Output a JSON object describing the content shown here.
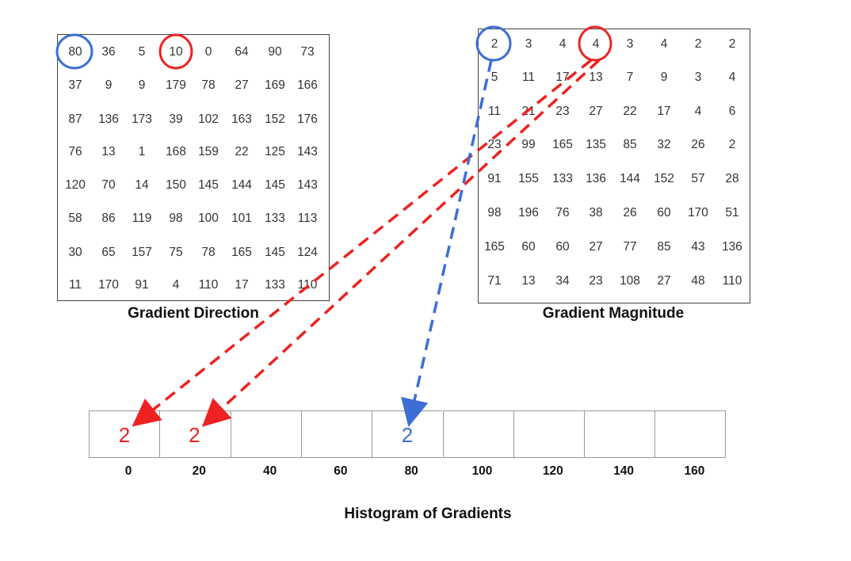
{
  "direction": {
    "caption": "Gradient Direction",
    "rows": [
      [
        "80",
        "36",
        "5",
        "10",
        "0",
        "64",
        "90",
        "73"
      ],
      [
        "37",
        "9",
        "9",
        "179",
        "78",
        "27",
        "169",
        "166"
      ],
      [
        "87",
        "136",
        "173",
        "39",
        "102",
        "163",
        "152",
        "176"
      ],
      [
        "76",
        "13",
        "1",
        "168",
        "159",
        "22",
        "125",
        "143"
      ],
      [
        "120",
        "70",
        "14",
        "150",
        "145",
        "144",
        "145",
        "143"
      ],
      [
        "58",
        "86",
        "119",
        "98",
        "100",
        "101",
        "133",
        "113"
      ],
      [
        "30",
        "65",
        "157",
        "75",
        "78",
        "165",
        "145",
        "124"
      ],
      [
        "11",
        "170",
        "91",
        "4",
        "110",
        "17",
        "133",
        "110"
      ]
    ]
  },
  "magnitude": {
    "caption": "Gradient Magnitude",
    "rows": [
      [
        "2",
        "3",
        "4",
        "4",
        "3",
        "4",
        "2",
        "2"
      ],
      [
        "5",
        "11",
        "17",
        "13",
        "7",
        "9",
        "3",
        "4"
      ],
      [
        "11",
        "21",
        "23",
        "27",
        "22",
        "17",
        "4",
        "6"
      ],
      [
        "23",
        "99",
        "165",
        "135",
        "85",
        "32",
        "26",
        "2"
      ],
      [
        "91",
        "155",
        "133",
        "136",
        "144",
        "152",
        "57",
        "28"
      ],
      [
        "98",
        "196",
        "76",
        "38",
        "26",
        "60",
        "170",
        "51"
      ],
      [
        "165",
        "60",
        "60",
        "27",
        "77",
        "85",
        "43",
        "136"
      ],
      [
        "71",
        "13",
        "34",
        "23",
        "108",
        "27",
        "48",
        "110"
      ]
    ]
  },
  "histogram": {
    "title": "Histogram of Gradients",
    "bins": [
      "0",
      "20",
      "40",
      "60",
      "80",
      "100",
      "120",
      "140",
      "160"
    ],
    "values": [
      {
        "bin": 0,
        "value": "2",
        "color": "#ee2222"
      },
      {
        "bin": 1,
        "value": "2",
        "color": "#ee2222"
      },
      {
        "bin": 4,
        "value": "2",
        "color": "#3b6fd4"
      }
    ]
  },
  "colors": {
    "blue": "#3b6fd4",
    "red": "#ee2222"
  }
}
